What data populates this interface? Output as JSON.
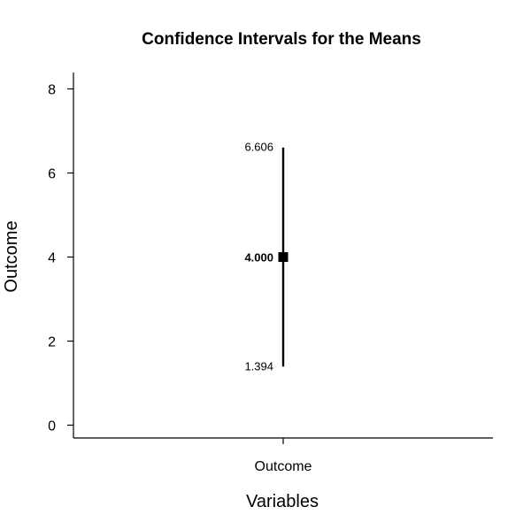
{
  "chart_data": {
    "type": "scatter",
    "title": "Confidence Intervals for the Means",
    "xlabel": "Variables",
    "ylabel": "Outcome",
    "categories": [
      "Outcome"
    ],
    "ylim": [
      0,
      8
    ],
    "yticks": [
      "0",
      "2",
      "4",
      "6",
      "8"
    ],
    "grid": false,
    "legend": "none",
    "intervals": [
      {
        "category": "Outcome",
        "mean": 4.0,
        "lower": 1.394,
        "upper": 6.606,
        "mean_label": "4.000",
        "lower_label": "1.394",
        "upper_label": "6.606"
      }
    ]
  }
}
